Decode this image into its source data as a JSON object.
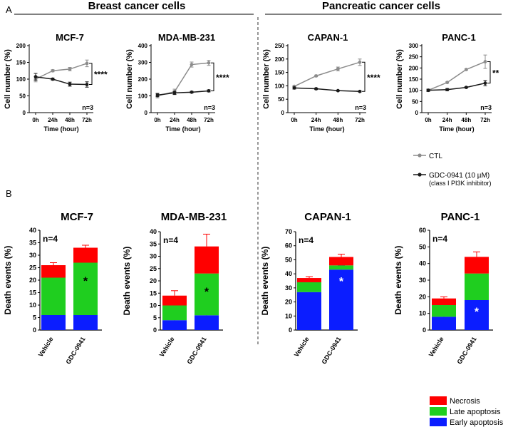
{
  "figure": {
    "panel_a_label": "A",
    "panel_b_label": "B",
    "group_left": "Breast cancer cells",
    "group_right": "Pancreatic cancer cells"
  },
  "colors": {
    "ctl": "#8c8c8c",
    "gdc": "#1a1a1a",
    "necrosis": "#ff0000",
    "late_apoptosis": "#1fce1f",
    "early_apoptosis": "#0b1dff",
    "axis": "#000000"
  },
  "line_legend": {
    "ctl": "CTL",
    "gdc": "GDC-0941 (10 µM)",
    "gdc_note": "(class I PI3K inhibitor)"
  },
  "bar_legend": [
    "Necrosis",
    "Late apoptosis",
    "Early apoptosis"
  ],
  "chart_data": [
    {
      "type": "line",
      "title": "MCF-7",
      "xlabel": "Time (hour)",
      "ylabel": "Cell number (%)",
      "categories": [
        "0h",
        "24h",
        "48h",
        "72h"
      ],
      "ylim": [
        0,
        200
      ],
      "yticks": [
        0,
        50,
        100,
        150,
        200
      ],
      "n_label": "n=3",
      "significance": "****",
      "series": [
        {
          "name": "CTL",
          "values": [
            100,
            125,
            130,
            147
          ],
          "errors": [
            8,
            3,
            5,
            10
          ]
        },
        {
          "name": "GDC-0941 (10 µM)",
          "values": [
            107,
            100,
            85,
            84
          ],
          "errors": [
            10,
            3,
            6,
            8
          ]
        }
      ]
    },
    {
      "type": "line",
      "title": "MDA-MB-231",
      "xlabel": "Time (hour)",
      "ylabel": "Cell number (%)",
      "categories": [
        "0h",
        "24h",
        "48h",
        "72h"
      ],
      "ylim": [
        0,
        400
      ],
      "yticks": [
        0,
        100,
        200,
        300,
        400
      ],
      "n_label": "n=3",
      "significance": "****",
      "series": [
        {
          "name": "CTL",
          "values": [
            100,
            125,
            287,
            297
          ],
          "errors": [
            12,
            15,
            15,
            15
          ]
        },
        {
          "name": "GDC-0941 (10 µM)",
          "values": [
            105,
            118,
            122,
            130
          ],
          "errors": [
            10,
            10,
            5,
            6
          ]
        }
      ]
    },
    {
      "type": "line",
      "title": "CAPAN-1",
      "xlabel": "Time (hour)",
      "ylabel": "Cell number (%)",
      "categories": [
        "0h",
        "24h",
        "48h",
        "72h"
      ],
      "ylim": [
        0,
        250
      ],
      "yticks": [
        0,
        50,
        100,
        150,
        200,
        250
      ],
      "n_label": "n=3",
      "significance": "****",
      "series": [
        {
          "name": "CTL",
          "values": [
            98,
            137,
            163,
            188
          ],
          "errors": [
            3,
            3,
            7,
            12
          ]
        },
        {
          "name": "GDC-0941 (10 µM)",
          "values": [
            92,
            89,
            82,
            79
          ],
          "errors": [
            4,
            3,
            2,
            2
          ]
        }
      ]
    },
    {
      "type": "line",
      "title": "PANC-1",
      "xlabel": "Time (hour)",
      "ylabel": "Cell number (%)",
      "categories": [
        "0h",
        "24h",
        "48h",
        "72h"
      ],
      "ylim": [
        0,
        300
      ],
      "yticks": [
        0,
        50,
        100,
        150,
        200,
        250,
        300
      ],
      "n_label": "n=3",
      "significance": "**",
      "series": [
        {
          "name": "CTL",
          "values": [
            100,
            135,
            193,
            228
          ],
          "errors": [
            5,
            3,
            3,
            30
          ]
        },
        {
          "name": "GDC-0941 (10 µM)",
          "values": [
            100,
            103,
            113,
            132
          ],
          "errors": [
            5,
            5,
            3,
            12
          ]
        }
      ]
    },
    {
      "type": "bar",
      "stacked": true,
      "title": "MCF-7",
      "ylabel": "Death events (%)",
      "ylim": [
        0,
        40
      ],
      "yticks": [
        0,
        5,
        10,
        15,
        20,
        25,
        30,
        35,
        40
      ],
      "n_label": "n=4",
      "categories": [
        "Vehicle",
        "GDC-0941"
      ],
      "series": [
        {
          "name": "Early apoptosis",
          "values": [
            6,
            6
          ],
          "errors": [
            1,
            1
          ]
        },
        {
          "name": "Late apoptosis",
          "values": [
            15,
            21
          ],
          "errors": [
            1,
            2
          ]
        },
        {
          "name": "Necrosis",
          "values": [
            5,
            6
          ],
          "errors": [
            1,
            1
          ]
        }
      ],
      "annotations": [
        {
          "category": "GDC-0941",
          "text": "*",
          "color": "#000000",
          "value": 21
        }
      ]
    },
    {
      "type": "bar",
      "stacked": true,
      "title": "MDA-MB-231",
      "ylabel": "Death events (%)",
      "ylim": [
        0,
        40
      ],
      "yticks": [
        0,
        5,
        10,
        15,
        20,
        25,
        30,
        35,
        40
      ],
      "n_label": "n=4",
      "categories": [
        "Vehicle",
        "GDC-0941"
      ],
      "series": [
        {
          "name": "Early apoptosis",
          "values": [
            4,
            6
          ],
          "errors": [
            1,
            1
          ]
        },
        {
          "name": "Late apoptosis",
          "values": [
            6,
            17
          ],
          "errors": [
            1,
            2
          ]
        },
        {
          "name": "Necrosis",
          "values": [
            4,
            11
          ],
          "errors": [
            2,
            5
          ]
        }
      ],
      "annotations": [
        {
          "category": "GDC-0941",
          "text": "*",
          "color": "#000000",
          "value": 17
        }
      ]
    },
    {
      "type": "bar",
      "stacked": true,
      "title": "CAPAN-1",
      "ylabel": "Death events (%)",
      "ylim": [
        0,
        70
      ],
      "yticks": [
        0,
        10,
        20,
        30,
        40,
        50,
        60,
        70
      ],
      "n_label": "n=4",
      "categories": [
        "Vehicle",
        "GDC-0941"
      ],
      "series": [
        {
          "name": "Early apoptosis",
          "values": [
            27,
            43
          ],
          "errors": [
            3,
            3
          ]
        },
        {
          "name": "Late apoptosis",
          "values": [
            7,
            3
          ],
          "errors": [
            1,
            1
          ]
        },
        {
          "name": "Necrosis",
          "values": [
            3,
            6
          ],
          "errors": [
            1,
            2
          ]
        }
      ],
      "annotations": [
        {
          "category": "GDC-0941",
          "text": "*",
          "color": "#ffffff",
          "value": 37
        }
      ]
    },
    {
      "type": "bar",
      "stacked": true,
      "title": "PANC-1",
      "ylabel": "Death events (%)",
      "ylim": [
        0,
        60
      ],
      "yticks": [
        0,
        10,
        20,
        30,
        40,
        50,
        60
      ],
      "n_label": "n=4",
      "categories": [
        "Vehicle",
        "GDC-0941"
      ],
      "series": [
        {
          "name": "Early apoptosis",
          "values": [
            8,
            18
          ],
          "errors": [
            1,
            2
          ]
        },
        {
          "name": "Late apoptosis",
          "values": [
            7,
            16
          ],
          "errors": [
            1,
            2
          ]
        },
        {
          "name": "Necrosis",
          "values": [
            4,
            10
          ],
          "errors": [
            1,
            3
          ]
        }
      ],
      "annotations": [
        {
          "category": "GDC-0941",
          "text": "*",
          "color": "#ffffff",
          "value": 13
        }
      ]
    }
  ]
}
